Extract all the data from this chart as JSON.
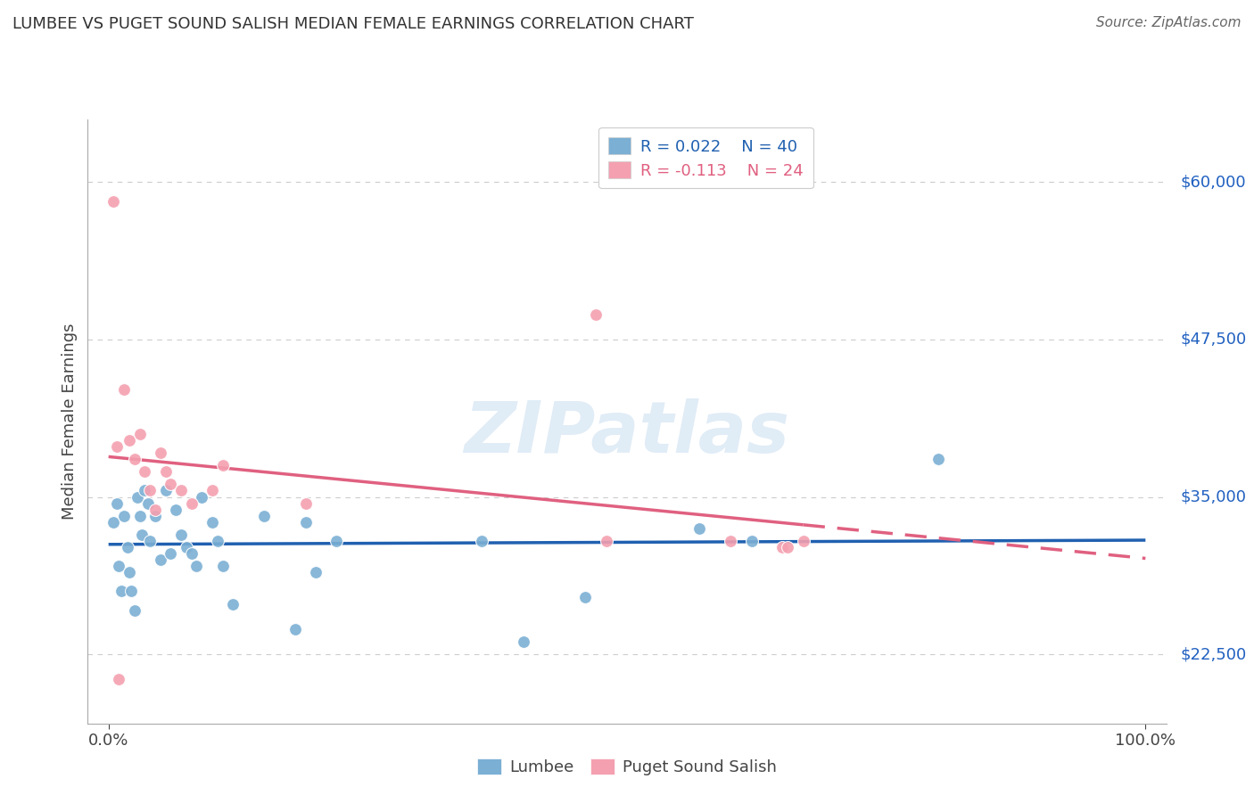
{
  "title": "LUMBEE VS PUGET SOUND SALISH MEDIAN FEMALE EARNINGS CORRELATION CHART",
  "source": "Source: ZipAtlas.com",
  "xlabel": "",
  "ylabel": "Median Female Earnings",
  "watermark": "ZIPatlas",
  "legend_lumbee": "Lumbee",
  "legend_puget": "Puget Sound Salish",
  "r_lumbee": 0.022,
  "n_lumbee": 40,
  "r_puget": -0.113,
  "n_puget": 24,
  "xlim": [
    -0.02,
    1.02
  ],
  "ylim": [
    17000,
    65000
  ],
  "yticks": [
    22500,
    35000,
    47500,
    60000
  ],
  "xticks": [
    0.0,
    1.0
  ],
  "xtick_labels": [
    "0.0%",
    "100.0%"
  ],
  "ytick_labels": [
    "$22,500",
    "$35,000",
    "$47,500",
    "$60,000"
  ],
  "color_lumbee": "#7bafd4",
  "color_puget": "#f4a0b0",
  "line_color_lumbee": "#2060b0",
  "line_color_puget": "#e06080",
  "background": "#ffffff",
  "grid_color": "#cccccc",
  "lumbee_x": [
    0.005,
    0.008,
    0.01,
    0.012,
    0.015,
    0.018,
    0.02,
    0.022,
    0.025,
    0.028,
    0.03,
    0.032,
    0.035,
    0.038,
    0.04,
    0.045,
    0.05,
    0.055,
    0.06,
    0.065,
    0.07,
    0.075,
    0.08,
    0.085,
    0.09,
    0.1,
    0.105,
    0.11,
    0.12,
    0.15,
    0.18,
    0.19,
    0.2,
    0.22,
    0.36,
    0.4,
    0.46,
    0.57,
    0.62,
    0.8
  ],
  "lumbee_y": [
    33000,
    34500,
    29500,
    27500,
    33500,
    31000,
    29000,
    27500,
    26000,
    35000,
    33500,
    32000,
    35500,
    34500,
    31500,
    33500,
    30000,
    35500,
    30500,
    34000,
    32000,
    31000,
    30500,
    29500,
    35000,
    33000,
    31500,
    29500,
    26500,
    33500,
    24500,
    33000,
    29000,
    31500,
    31500,
    23500,
    27000,
    32500,
    31500,
    38000
  ],
  "puget_x": [
    0.005,
    0.008,
    0.015,
    0.02,
    0.025,
    0.03,
    0.035,
    0.04,
    0.045,
    0.05,
    0.055,
    0.06,
    0.07,
    0.08,
    0.1,
    0.11,
    0.19,
    0.47,
    0.48,
    0.6,
    0.65,
    0.655,
    0.67,
    0.01
  ],
  "puget_y": [
    58500,
    39000,
    43500,
    39500,
    38000,
    40000,
    37000,
    35500,
    34000,
    38500,
    37000,
    36000,
    35500,
    34500,
    35500,
    37500,
    34500,
    49500,
    31500,
    31500,
    31000,
    31000,
    31500,
    20500
  ]
}
